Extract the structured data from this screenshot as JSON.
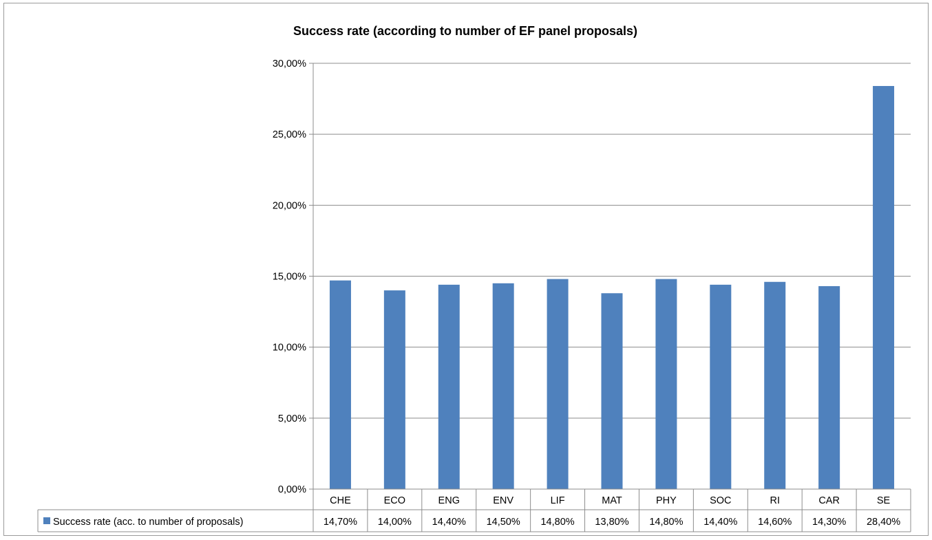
{
  "chart_data": {
    "type": "bar",
    "title": "Success rate (according to number of EF panel proposals)",
    "categories": [
      "CHE",
      "ECO",
      "ENG",
      "ENV",
      "LIF",
      "MAT",
      "PHY",
      "SOC",
      "RI",
      "CAR",
      "SE"
    ],
    "series": [
      {
        "name": "Success rate (acc. to number of proposals)",
        "values": [
          14.7,
          14.0,
          14.4,
          14.5,
          14.8,
          13.8,
          14.8,
          14.4,
          14.6,
          14.3,
          28.4
        ],
        "value_labels": [
          "14,70%",
          "14,00%",
          "14,40%",
          "14,50%",
          "14,80%",
          "13,80%",
          "14,80%",
          "14,40%",
          "14,60%",
          "14,30%",
          "28,40%"
        ],
        "color": "#4f81bd"
      }
    ],
    "ylim": [
      0,
      30
    ],
    "yticks": [
      0,
      5,
      10,
      15,
      20,
      25,
      30
    ],
    "ytick_labels": [
      "0,00%",
      "5,00%",
      "10,00%",
      "15,00%",
      "20,00%",
      "25,00%",
      "30,00%"
    ],
    "grid": true,
    "legend": "data-table",
    "gridline_color": "#8c8c8c",
    "border_color": "#8c8c8c"
  }
}
